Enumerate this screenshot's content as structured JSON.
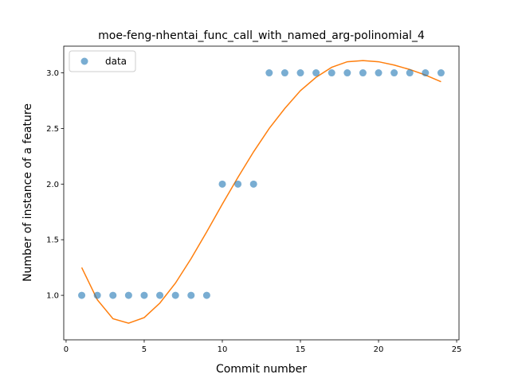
{
  "chart_data": {
    "type": "scatter",
    "title": "moe-feng-nhentai_func_call_with_named_arg-polinomial_4",
    "xlabel": "Commit number",
    "ylabel": "Number of instance of a feature",
    "xlim": [
      -0.15,
      25.15
    ],
    "ylim": [
      0.6,
      3.24
    ],
    "xticks": [
      0,
      5,
      10,
      15,
      20,
      25
    ],
    "yticks": [
      1.0,
      1.5,
      2.0,
      2.5,
      3.0
    ],
    "xtick_labels": [
      "0",
      "5",
      "10",
      "15",
      "20",
      "25"
    ],
    "ytick_labels": [
      "1.0",
      "1.5",
      "2.0",
      "2.5",
      "3.0"
    ],
    "grid": false,
    "legend": {
      "placement": "top-left",
      "entries": [
        "data"
      ]
    },
    "series": [
      {
        "name": "data",
        "kind": "scatter",
        "color": "#1f77b4",
        "x": [
          1,
          2,
          3,
          4,
          5,
          6,
          7,
          8,
          9,
          10,
          11,
          12,
          13,
          14,
          15,
          16,
          17,
          18,
          19,
          20,
          21,
          22,
          23,
          24
        ],
        "y": [
          1,
          1,
          1,
          1,
          1,
          1,
          1,
          1,
          1,
          2,
          2,
          2,
          3,
          3,
          3,
          3,
          3,
          3,
          3,
          3,
          3,
          3,
          3,
          3
        ]
      },
      {
        "kind": "line",
        "color": "#ff7f0e",
        "x": [
          1,
          2,
          3,
          4,
          5,
          6,
          7,
          8,
          9,
          10,
          11,
          12,
          13,
          14,
          15,
          16,
          17,
          18,
          19,
          20,
          21,
          22,
          23,
          24
        ],
        "y": [
          1.25,
          0.96,
          0.79,
          0.75,
          0.8,
          0.93,
          1.11,
          1.33,
          1.57,
          1.82,
          2.06,
          2.29,
          2.5,
          2.68,
          2.84,
          2.96,
          3.05,
          3.1,
          3.11,
          3.1,
          3.07,
          3.03,
          2.98,
          2.92
        ]
      }
    ]
  }
}
